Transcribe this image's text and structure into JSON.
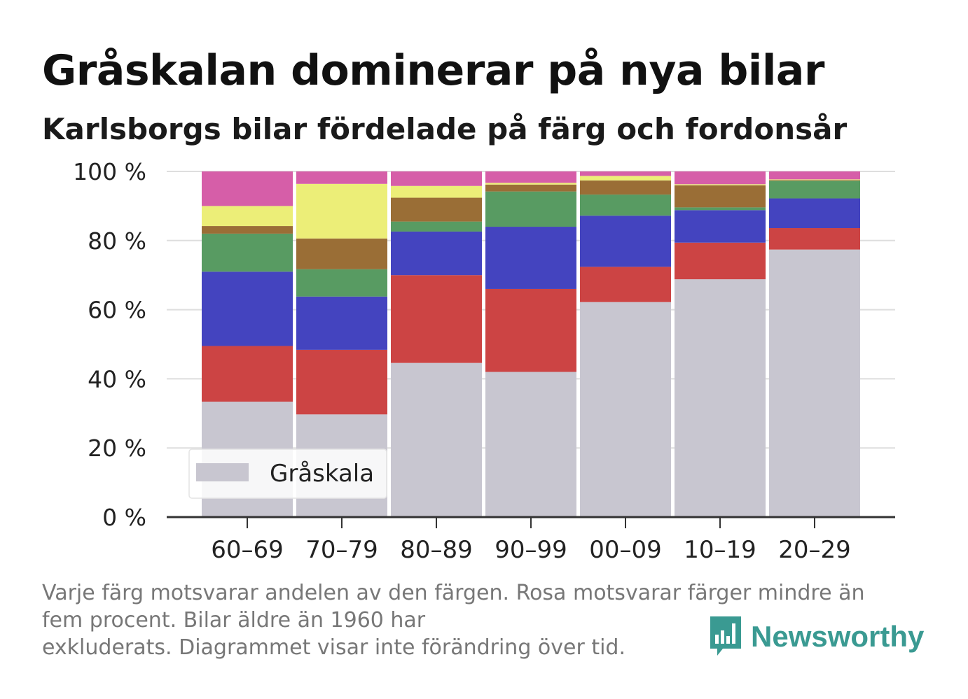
{
  "header": {
    "title": "Gråskalan dominerar på nya bilar",
    "subtitle": "Karlsborgs bilar fördelade på färg och fordonsår"
  },
  "footer": {
    "caption_lines": [
      "Varje färg motsvarar andelen av den färgen. Rosa motsvarar färger mindre än",
      "fem procent. Bilar äldre än 1960 har",
      "exkluderats. Diagrammet visar inte förändring över tid."
    ],
    "logo_text": "Newsworthy",
    "logo_icon": "bar-chart-speech-bubble-icon",
    "logo_color": "#3a9a92"
  },
  "chart_data": {
    "type": "bar",
    "stacked": true,
    "categories": [
      "60–69",
      "70–79",
      "80–89",
      "90–99",
      "00–09",
      "10–19",
      "20–29"
    ],
    "ylim": [
      0,
      100
    ],
    "yticks": [
      0,
      20,
      40,
      60,
      80,
      100
    ],
    "ytick_labels": [
      "0 %",
      "20 %",
      "40 %",
      "60 %",
      "80 %",
      "100 %"
    ],
    "grid": true,
    "legend": {
      "placement": "bottom-left",
      "entries": [
        "Gråskala"
      ]
    },
    "series": [
      {
        "name": "Gråskala",
        "color": "#c8c6d0",
        "values": [
          33.4,
          29.7,
          44.6,
          42.0,
          62.2,
          68.8,
          77.4
        ]
      },
      {
        "color": "#cc4444",
        "values": [
          16.1,
          18.7,
          25.4,
          24.0,
          10.2,
          10.6,
          6.2
        ]
      },
      {
        "color": "#4444bf",
        "values": [
          21.5,
          15.4,
          12.6,
          18.0,
          14.8,
          9.4,
          8.6
        ]
      },
      {
        "color": "#589b62",
        "values": [
          11.0,
          7.9,
          2.9,
          10.2,
          6.1,
          0.8,
          5.1
        ]
      },
      {
        "color": "#9a6e36",
        "values": [
          2.2,
          8.9,
          6.9,
          2.0,
          4.1,
          6.4,
          0.2
        ]
      },
      {
        "color": "#ecee78",
        "values": [
          5.8,
          15.8,
          3.4,
          0.5,
          1.3,
          0.3,
          0.2
        ]
      },
      {
        "color": "#d65ea8",
        "values": [
          10.0,
          3.6,
          4.2,
          3.3,
          1.3,
          3.7,
          2.3
        ]
      }
    ]
  }
}
